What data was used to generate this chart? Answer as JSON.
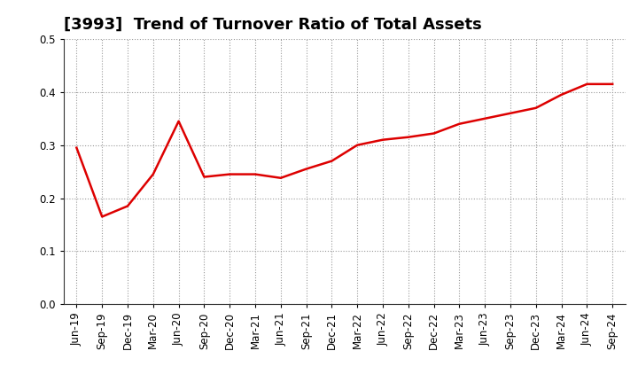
{
  "title": "[3993]  Trend of Turnover Ratio of Total Assets",
  "x_labels": [
    "Jun-19",
    "Sep-19",
    "Dec-19",
    "Mar-20",
    "Jun-20",
    "Sep-20",
    "Dec-20",
    "Mar-21",
    "Jun-21",
    "Sep-21",
    "Dec-21",
    "Mar-22",
    "Jun-22",
    "Sep-22",
    "Dec-22",
    "Mar-23",
    "Jun-23",
    "Sep-23",
    "Dec-23",
    "Mar-24",
    "Jun-24",
    "Sep-24"
  ],
  "y_values": [
    0.295,
    0.165,
    0.185,
    0.245,
    0.345,
    0.24,
    0.245,
    0.245,
    0.238,
    0.255,
    0.27,
    0.3,
    0.31,
    0.315,
    0.322,
    0.34,
    0.35,
    0.36,
    0.37,
    0.395,
    0.415,
    0.415
  ],
  "line_color": "#dd0000",
  "fill_color": "#ffcccc",
  "ylim": [
    0.0,
    0.5
  ],
  "yticks": [
    0.0,
    0.1,
    0.2,
    0.3,
    0.4,
    0.5
  ],
  "background_color": "#ffffff",
  "grid_color": "#999999",
  "title_fontsize": 13,
  "tick_fontsize": 8.5
}
